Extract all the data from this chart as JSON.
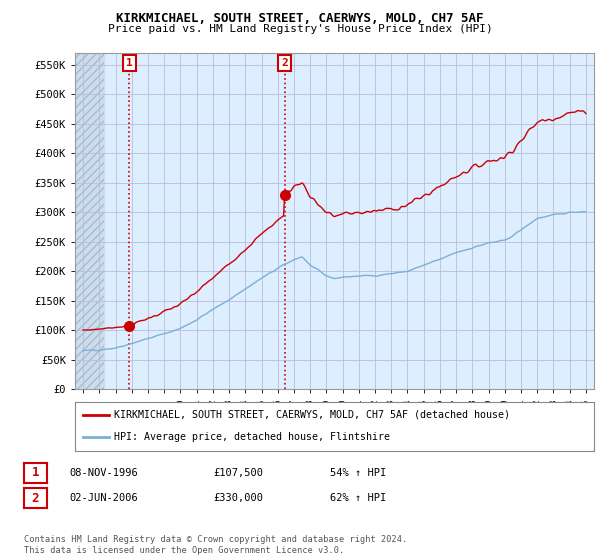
{
  "title": "KIRKMICHAEL, SOUTH STREET, CAERWYS, MOLD, CH7 5AF",
  "subtitle": "Price paid vs. HM Land Registry's House Price Index (HPI)",
  "ylabel_ticks": [
    "£0",
    "£50K",
    "£100K",
    "£150K",
    "£200K",
    "£250K",
    "£300K",
    "£350K",
    "£400K",
    "£450K",
    "£500K",
    "£550K"
  ],
  "ytick_vals": [
    0,
    50000,
    100000,
    150000,
    200000,
    250000,
    300000,
    350000,
    400000,
    450000,
    500000,
    550000
  ],
  "ylim": [
    0,
    570000
  ],
  "xlim_start": 1993.5,
  "xlim_end": 2025.5,
  "sale1_date": 1996.86,
  "sale1_price": 107500,
  "sale2_date": 2006.42,
  "sale2_price": 330000,
  "legend_line1": "KIRKMICHAEL, SOUTH STREET, CAERWYS, MOLD, CH7 5AF (detached house)",
  "legend_line2": "HPI: Average price, detached house, Flintshire",
  "table_row1": [
    "1",
    "08-NOV-1996",
    "£107,500",
    "54% ↑ HPI"
  ],
  "table_row2": [
    "2",
    "02-JUN-2006",
    "£330,000",
    "62% ↑ HPI"
  ],
  "footnote": "Contains HM Land Registry data © Crown copyright and database right 2024.\nThis data is licensed under the Open Government Licence v3.0.",
  "hpi_color": "#7bafd4",
  "price_color": "#cc0000",
  "bg_color": "#ffffff",
  "plot_bg_color": "#ddeeff",
  "grid_color": "#aaaacc",
  "hatch_left_color": "#ccddee"
}
